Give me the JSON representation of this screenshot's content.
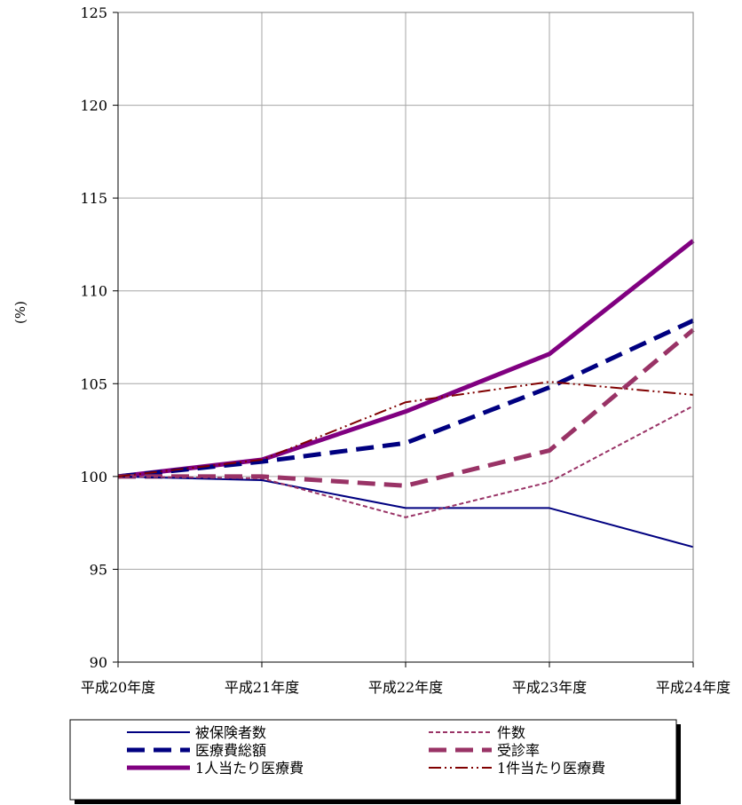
{
  "chart_data": {
    "type": "line",
    "title": "",
    "xlabel": "",
    "ylabel": "(%)",
    "categories": [
      "平成20年度",
      "平成21年度",
      "平成22年度",
      "平成23年度",
      "平成24年度"
    ],
    "ylim": [
      90,
      125
    ],
    "yticks": [
      90,
      95,
      100,
      105,
      110,
      115,
      120,
      125
    ],
    "grid": true,
    "legend_position": "bottom",
    "series": [
      {
        "name": "被保険者数",
        "values": [
          100,
          99.8,
          98.3,
          98.3,
          96.2
        ],
        "color": "#000080",
        "style": "solid-thin"
      },
      {
        "name": "件数",
        "values": [
          100,
          99.9,
          97.8,
          99.7,
          103.8
        ],
        "color": "#993366",
        "style": "dashed-thin"
      },
      {
        "name": "医療費総額",
        "values": [
          100,
          100.8,
          101.8,
          104.8,
          108.4
        ],
        "color": "#000080",
        "style": "dashed-thick"
      },
      {
        "name": "受診率",
        "values": [
          100,
          100.0,
          99.5,
          101.4,
          107.9
        ],
        "color": "#993366",
        "style": "dashed-thick"
      },
      {
        "name": "1人当たり医療費",
        "values": [
          100,
          100.9,
          103.5,
          106.6,
          112.7
        ],
        "color": "#800080",
        "style": "solid-thick"
      },
      {
        "name": "1件当たり医療費",
        "values": [
          100,
          100.9,
          104.0,
          105.1,
          104.4
        ],
        "color": "#800000",
        "style": "dashdotdot"
      }
    ]
  }
}
